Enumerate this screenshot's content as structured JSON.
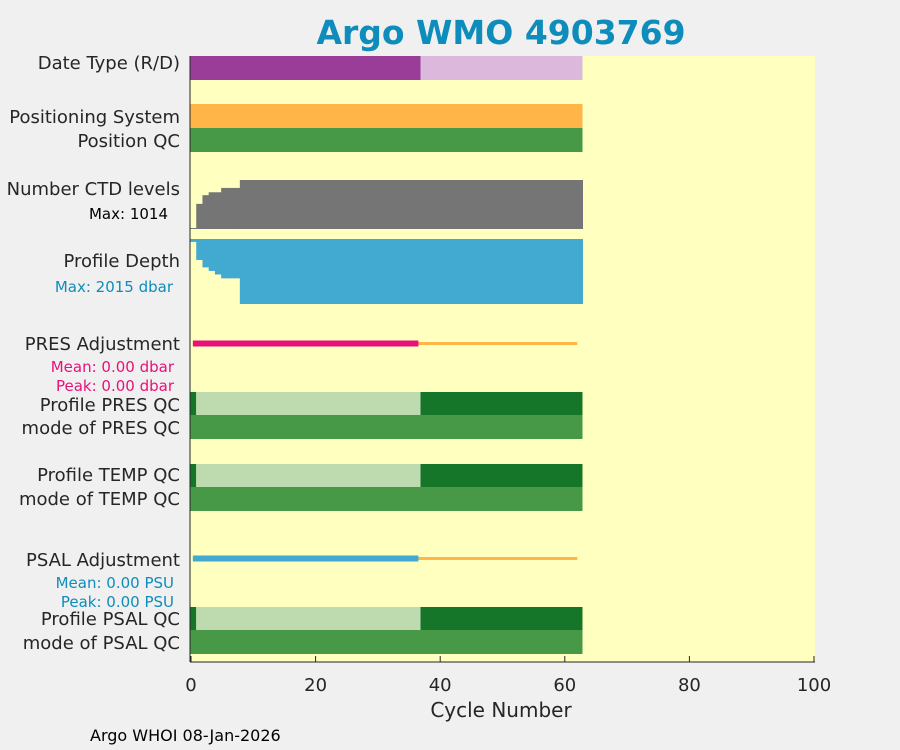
{
  "chart_data": {
    "type": "bar",
    "title": "Argo WMO 4903769",
    "xlabel": "Cycle Number",
    "xlim": [
      0,
      100
    ],
    "xticks": [
      "0",
      "20",
      "40",
      "60",
      "80",
      "100"
    ],
    "footer": "Argo WHOI 08-Jan-2026",
    "n_cycles": 63,
    "labels": {
      "date_type": "Date Type (R/D)",
      "positioning_system": "Positioning System",
      "position_qc": "Position QC",
      "ctd_levels": "Number CTD levels",
      "ctd_max": "Max: 1014",
      "profile_depth": "Profile Depth",
      "depth_max": "Max: 2015 dbar",
      "pres_adjustment": "PRES Adjustment",
      "pres_mean": "Mean: 0.00 dbar",
      "pres_peak": "Peak: 0.00 dbar",
      "profile_pres_qc": "Profile PRES QC",
      "mode_pres_qc": "mode of PRES QC",
      "profile_temp_qc": "Profile TEMP QC",
      "mode_temp_qc": "mode of TEMP QC",
      "psal_adjustment": "PSAL Adjustment",
      "psal_mean": "Mean: 0.00 PSU",
      "psal_peak": "Peak: 0.00 PSU",
      "profile_psal_qc": "Profile PSAL QC",
      "mode_psal_qc": "mode of PSAL QC"
    },
    "colors": {
      "plot_bg": "#ffffc0",
      "delayed_mode": "#993d99",
      "realtime_mode": "#dcb8dc",
      "positioning": "#ffb547",
      "qc_good": "#479947",
      "qc_dark": "#15762a",
      "qc_light": "#bddbaf",
      "ctd_gray": "#757575",
      "depth_blue": "#42aad0",
      "pres_pink": "#e8117a",
      "adjust_orange": "#ffb547",
      "psal_blue": "#42aad0",
      "title": "#0e8cbb"
    },
    "date_type_segments": [
      {
        "from": 0,
        "to": 37,
        "mode": "D"
      },
      {
        "from": 37,
        "to": 63,
        "mode": "R"
      }
    ],
    "profile_qc_segments": [
      {
        "from": 0,
        "to": 1,
        "grade": "dark"
      },
      {
        "from": 1,
        "to": 37,
        "grade": "light"
      },
      {
        "from": 37,
        "to": 63,
        "grade": "dark"
      }
    ],
    "ctd_levels_steps": [
      {
        "from": 0,
        "to": 1,
        "value": 20
      },
      {
        "from": 1,
        "to": 2,
        "value": 520
      },
      {
        "from": 2,
        "to": 3,
        "value": 700
      },
      {
        "from": 3,
        "to": 5,
        "value": 760
      },
      {
        "from": 5,
        "to": 8,
        "value": 850
      },
      {
        "from": 8,
        "to": 63,
        "value": 1014
      }
    ],
    "profile_depth_steps": [
      {
        "from": 0,
        "to": 1,
        "value": 90
      },
      {
        "from": 1,
        "to": 2,
        "value": 650
      },
      {
        "from": 2,
        "to": 3,
        "value": 880
      },
      {
        "from": 3,
        "to": 4,
        "value": 990
      },
      {
        "from": 4,
        "to": 5,
        "value": 1100
      },
      {
        "from": 5,
        "to": 8,
        "value": 1220
      },
      {
        "from": 8,
        "to": 63,
        "value": 2015
      }
    ],
    "pres_adjustment": {
      "adjusted_to": 36.5,
      "end": 62,
      "mean": 0.0,
      "peak": 0.0
    },
    "psal_adjustment": {
      "adjusted_to": 36.5,
      "end": 62,
      "mean": 0.0,
      "peak": 0.0
    }
  }
}
